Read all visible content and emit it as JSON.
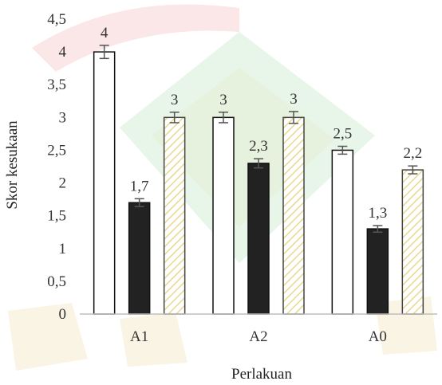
{
  "chart_data": {
    "type": "bar",
    "title": "",
    "xlabel": "Perlakuan",
    "ylabel": "Skor kesukaan",
    "categories": [
      "A1",
      "A2",
      "A0"
    ],
    "ylim": [
      0,
      4.5
    ],
    "ytick_labels": [
      "0",
      "0,5",
      "1",
      "1,5",
      "2",
      "2,5",
      "3",
      "3,5",
      "4",
      "4,5"
    ],
    "grid": false,
    "legend": "none",
    "series": [
      {
        "values": [
          4,
          3,
          2.5
        ],
        "labels": [
          "4",
          "3",
          "2,5"
        ],
        "error": [
          0.1,
          0.08,
          0.06
        ],
        "style": "white"
      },
      {
        "values": [
          1.7,
          2.3,
          1.3
        ],
        "labels": [
          "1,7",
          "2,3",
          "1,3"
        ],
        "error": [
          0.06,
          0.07,
          0.05
        ],
        "style": "dark"
      },
      {
        "values": [
          3,
          3,
          2.2
        ],
        "labels": [
          "3",
          "3",
          "2,2"
        ],
        "error": [
          0.08,
          0.09,
          0.06
        ],
        "style": "hatched"
      }
    ],
    "colors": {
      "white": "#ffffff",
      "dark": "#222222",
      "hatch": "#e8d890",
      "outline": "#111111",
      "errorbar": "#555555"
    }
  }
}
